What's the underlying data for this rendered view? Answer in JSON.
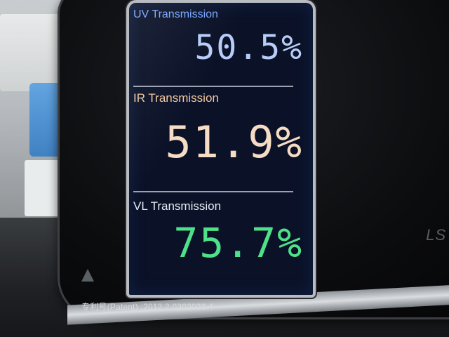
{
  "display": {
    "uv": {
      "label": "UV Transmission",
      "value": "50.5%"
    },
    "ir": {
      "label": "IR Transmission",
      "value": "51.9%"
    },
    "vl": {
      "label": "VL Transmission",
      "value": "75.7%"
    }
  },
  "device": {
    "patent_text": "专利号(Patent) :2012 2 0302023.4",
    "brand_fragment": "LS"
  },
  "colors": {
    "uv_text": "#b7cdf8",
    "ir_text": "#f6dcc4",
    "vl_text": "#4fe08a",
    "lcd_background": "#0b1228"
  }
}
